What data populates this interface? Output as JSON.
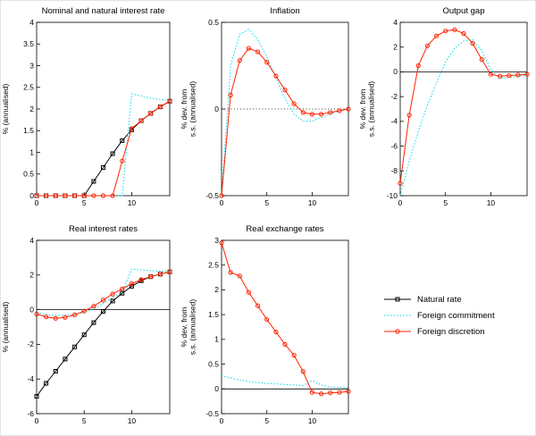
{
  "figure": {
    "background": "#ffffff"
  },
  "series_styles": {
    "natural": {
      "color": "#000000",
      "marker": "square",
      "dash": null
    },
    "commitment": {
      "color": "#00d8e8",
      "marker": null,
      "dash": "1.5,2"
    },
    "discretion": {
      "color": "#ff2200",
      "marker": "circle",
      "dash": null
    }
  },
  "legend": {
    "items": [
      {
        "id": "natural",
        "label": "Natural rate"
      },
      {
        "id": "commitment",
        "label": "Foreign commitment"
      },
      {
        "id": "discretion",
        "label": "Foreign discretion"
      }
    ]
  },
  "chart_data": {
    "type": "line",
    "x": [
      0,
      1,
      2,
      3,
      4,
      5,
      6,
      7,
      8,
      9,
      10,
      11,
      12,
      13,
      14
    ],
    "plots": [
      {
        "id": "nominal-and-natural-interest-rate",
        "title": "Nominal and natural interest rate",
        "ylabel": [
          "% (annualised)"
        ],
        "xlim": [
          0,
          14
        ],
        "ylim": [
          0,
          4
        ],
        "xticks": [
          0,
          5,
          10
        ],
        "yticks": [
          0,
          0.5,
          1,
          1.5,
          2,
          2.5,
          3,
          3.5,
          4
        ],
        "zero_line": false,
        "zero_style": "solid",
        "series": {
          "natural": [
            0,
            0,
            0,
            0,
            0,
            0,
            0.33,
            0.65,
            0.97,
            1.27,
            1.52,
            1.73,
            1.9,
            2.05,
            2.18
          ],
          "commitment": [
            0,
            0,
            0,
            0,
            0,
            0,
            0,
            0,
            0,
            0,
            2.35,
            2.3,
            2.25,
            2.22,
            2.2
          ],
          "discretion": [
            0,
            0,
            0,
            0,
            0,
            0,
            0,
            0,
            0,
            0.8,
            1.55,
            1.73,
            1.9,
            2.05,
            2.18
          ]
        }
      },
      {
        "id": "inflation",
        "title": "Inflation",
        "ylabel": [
          "% dev. from",
          "s.s. (annualised)"
        ],
        "xlim": [
          0,
          14
        ],
        "ylim": [
          -0.5,
          0.5
        ],
        "xticks": [
          0,
          5,
          10
        ],
        "yticks": [
          -0.5,
          0,
          0.5
        ],
        "zero_line": true,
        "zero_style": "dotted",
        "series": {
          "commitment": [
            -0.5,
            0.25,
            0.43,
            0.46,
            0.4,
            0.3,
            0.18,
            0.06,
            -0.03,
            -0.07,
            -0.07,
            -0.05,
            -0.03,
            -0.01,
            0
          ],
          "discretion": [
            -0.5,
            0.08,
            0.28,
            0.35,
            0.33,
            0.27,
            0.19,
            0.11,
            0.03,
            -0.02,
            -0.03,
            -0.03,
            -0.02,
            -0.01,
            0
          ]
        }
      },
      {
        "id": "output-gap",
        "title": "Output gap",
        "ylabel": [
          "% dev. from",
          "s.s. (annualised)"
        ],
        "xlim": [
          0,
          14
        ],
        "ylim": [
          -10,
          4
        ],
        "xticks": [
          0,
          5,
          10
        ],
        "yticks": [
          -10,
          -8,
          -6,
          -4,
          -2,
          0,
          2,
          4
        ],
        "zero_line": true,
        "zero_style": "solid",
        "series": {
          "commitment": [
            -10,
            -7.2,
            -4.8,
            -2.7,
            -0.9,
            0.8,
            1.9,
            2.5,
            2.6,
            1.7,
            0.2,
            -0.55,
            -0.45,
            -0.35,
            -0.3
          ],
          "discretion": [
            -9,
            -3.5,
            0.5,
            2.1,
            2.9,
            3.3,
            3.4,
            3.1,
            2.3,
            1.0,
            -0.2,
            -0.35,
            -0.3,
            -0.25,
            -0.2
          ]
        }
      },
      {
        "id": "real-interest-rates",
        "title": "Real interest rates",
        "ylabel": [
          "% (annualised)"
        ],
        "xlim": [
          0,
          14
        ],
        "ylim": [
          -6,
          4
        ],
        "xticks": [
          0,
          5,
          10
        ],
        "yticks": [
          -6,
          -4,
          -2,
          0,
          2,
          4
        ],
        "zero_line": true,
        "zero_style": "solid",
        "series": {
          "natural": [
            -5,
            -4.25,
            -3.55,
            -2.85,
            -2.15,
            -1.45,
            -0.75,
            -0.1,
            0.5,
            0.95,
            1.35,
            1.67,
            1.9,
            2.05,
            2.18
          ],
          "commitment": [
            -0.15,
            -0.28,
            -0.33,
            -0.33,
            -0.28,
            -0.15,
            0.05,
            0.35,
            0.7,
            1.0,
            2.35,
            2.3,
            2.25,
            2.2,
            2.2
          ],
          "discretion": [
            -0.25,
            -0.42,
            -0.5,
            -0.45,
            -0.3,
            -0.08,
            0.2,
            0.55,
            0.9,
            1.2,
            1.5,
            1.73,
            1.9,
            2.05,
            2.18
          ]
        }
      },
      {
        "id": "real-exchange-rates",
        "title": "Real exchange rates",
        "ylabel": [
          "% dev. from",
          "s.s. (annualised)"
        ],
        "xlim": [
          0,
          14
        ],
        "ylim": [
          -0.5,
          3
        ],
        "xticks": [
          0,
          5,
          10
        ],
        "yticks": [
          -0.5,
          0,
          0.5,
          1,
          1.5,
          2,
          2.5,
          3
        ],
        "zero_line": true,
        "zero_style": "solid",
        "series": {
          "commitment": [
            0.27,
            0.22,
            0.18,
            0.15,
            0.13,
            0.11,
            0.1,
            0.09,
            0.08,
            0.07,
            0.17,
            0.08,
            0.04,
            0.03,
            0.02
          ],
          "discretion": [
            2.95,
            2.35,
            2.28,
            1.95,
            1.68,
            1.4,
            1.15,
            0.9,
            0.68,
            0.35,
            -0.07,
            -0.1,
            -0.08,
            -0.07,
            -0.05
          ]
        }
      }
    ]
  }
}
